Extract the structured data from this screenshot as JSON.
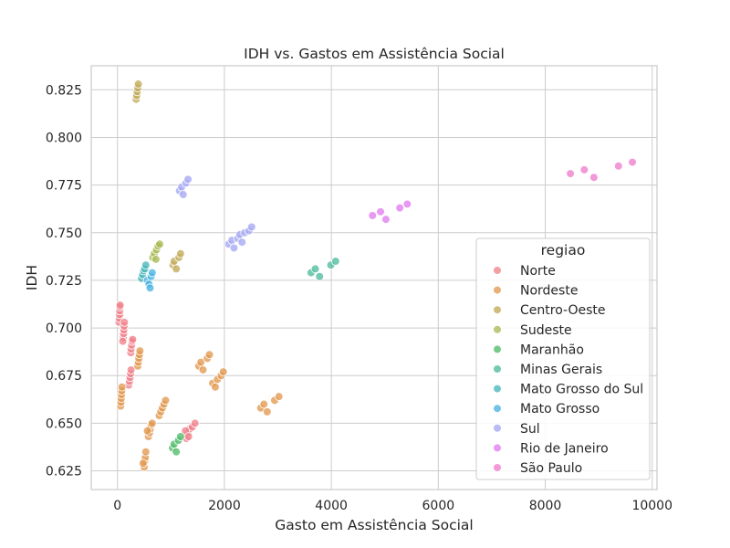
{
  "chart_data": {
    "type": "scatter",
    "title": "IDH vs. Gastos em Assistência Social",
    "xlabel": "Gasto em Assistência Social",
    "ylabel": "IDH",
    "xlim": [
      -490,
      10090
    ],
    "ylim": [
      0.6152,
      0.8376
    ],
    "xticks": [
      0,
      2000,
      4000,
      6000,
      8000,
      10000
    ],
    "yticks": [
      0.625,
      0.65,
      0.675,
      0.7,
      0.725,
      0.75,
      0.775,
      0.8,
      0.825
    ],
    "xtick_labels": [
      "0",
      "2000",
      "4000",
      "6000",
      "8000",
      "10000"
    ],
    "ytick_labels": [
      "0.625",
      "0.650",
      "0.675",
      "0.700",
      "0.725",
      "0.750",
      "0.775",
      "0.800",
      "0.825"
    ],
    "grid": true,
    "legend": {
      "title": "regiao",
      "position": "lower-right"
    },
    "series": [
      {
        "name": "Norte",
        "color": "#f0828a",
        "points": [
          [
            30,
            0.703
          ],
          [
            35,
            0.705
          ],
          [
            40,
            0.707
          ],
          [
            42,
            0.709
          ],
          [
            45,
            0.711
          ],
          [
            50,
            0.712
          ],
          [
            110,
            0.695
          ],
          [
            115,
            0.697
          ],
          [
            120,
            0.699
          ],
          [
            125,
            0.701
          ],
          [
            130,
            0.703
          ],
          [
            100,
            0.693
          ],
          [
            250,
            0.687
          ],
          [
            255,
            0.689
          ],
          [
            265,
            0.691
          ],
          [
            275,
            0.693
          ],
          [
            285,
            0.694
          ],
          [
            210,
            0.67
          ],
          [
            225,
            0.672
          ],
          [
            235,
            0.674
          ],
          [
            245,
            0.676
          ],
          [
            255,
            0.678
          ],
          [
            1290,
            0.642
          ],
          [
            1320,
            0.645
          ],
          [
            1350,
            0.647
          ],
          [
            1400,
            0.648
          ],
          [
            1450,
            0.65
          ],
          [
            1270,
            0.646
          ],
          [
            1330,
            0.643
          ]
        ]
      },
      {
        "name": "Nordeste",
        "color": "#e1994f",
        "points": [
          [
            60,
            0.659
          ],
          [
            65,
            0.661
          ],
          [
            70,
            0.663
          ],
          [
            75,
            0.665
          ],
          [
            80,
            0.667
          ],
          [
            85,
            0.669
          ],
          [
            380,
            0.68
          ],
          [
            390,
            0.682
          ],
          [
            400,
            0.684
          ],
          [
            410,
            0.686
          ],
          [
            420,
            0.688
          ],
          [
            500,
            0.627
          ],
          [
            510,
            0.63
          ],
          [
            520,
            0.632
          ],
          [
            530,
            0.635
          ],
          [
            480,
            0.629
          ],
          [
            580,
            0.643
          ],
          [
            600,
            0.645
          ],
          [
            615,
            0.647
          ],
          [
            630,
            0.649
          ],
          [
            650,
            0.65
          ],
          [
            560,
            0.646
          ],
          [
            780,
            0.654
          ],
          [
            810,
            0.656
          ],
          [
            840,
            0.658
          ],
          [
            870,
            0.66
          ],
          [
            900,
            0.662
          ],
          [
            1520,
            0.68
          ],
          [
            1560,
            0.682
          ],
          [
            1600,
            0.678
          ],
          [
            1680,
            0.684
          ],
          [
            1720,
            0.686
          ],
          [
            1780,
            0.671
          ],
          [
            1830,
            0.669
          ],
          [
            1870,
            0.673
          ],
          [
            1940,
            0.675
          ],
          [
            1980,
            0.677
          ],
          [
            2680,
            0.658
          ],
          [
            2740,
            0.66
          ],
          [
            2800,
            0.656
          ],
          [
            2940,
            0.662
          ],
          [
            3020,
            0.664
          ]
        ]
      },
      {
        "name": "Centro-Oeste",
        "color": "#c2aa5a",
        "points": [
          [
            350,
            0.82
          ],
          [
            360,
            0.822
          ],
          [
            370,
            0.824
          ],
          [
            380,
            0.826
          ],
          [
            390,
            0.828
          ],
          [
            1040,
            0.733
          ],
          [
            1060,
            0.735
          ],
          [
            1100,
            0.731
          ],
          [
            1150,
            0.737
          ],
          [
            1180,
            0.739
          ]
        ]
      },
      {
        "name": "Sudeste",
        "color": "#a9ba54",
        "points": [
          [
            660,
            0.737
          ],
          [
            690,
            0.739
          ],
          [
            730,
            0.741
          ],
          [
            760,
            0.743
          ],
          [
            790,
            0.744
          ],
          [
            720,
            0.736
          ]
        ]
      },
      {
        "name": "Maranhão",
        "color": "#4fbb69",
        "points": [
          [
            1030,
            0.637
          ],
          [
            1060,
            0.639
          ],
          [
            1100,
            0.635
          ],
          [
            1140,
            0.641
          ],
          [
            1180,
            0.643
          ]
        ]
      },
      {
        "name": "Minas Gerais",
        "color": "#4dbb9c",
        "points": [
          [
            3620,
            0.729
          ],
          [
            3700,
            0.731
          ],
          [
            3780,
            0.727
          ],
          [
            3990,
            0.733
          ],
          [
            4080,
            0.735
          ]
        ]
      },
      {
        "name": "Mato Grosso do Sul",
        "color": "#4ab7bb",
        "points": [
          [
            450,
            0.726
          ],
          [
            470,
            0.728
          ],
          [
            490,
            0.73
          ],
          [
            510,
            0.731
          ],
          [
            530,
            0.733
          ]
        ]
      },
      {
        "name": "Mato Grosso",
        "color": "#4ab4e0",
        "points": [
          [
            560,
            0.725
          ],
          [
            590,
            0.723
          ],
          [
            610,
            0.721
          ],
          [
            630,
            0.727
          ],
          [
            650,
            0.729
          ]
        ]
      },
      {
        "name": "Sul",
        "color": "#a4a8f2",
        "points": [
          [
            1160,
            0.772
          ],
          [
            1200,
            0.774
          ],
          [
            1230,
            0.77
          ],
          [
            1280,
            0.776
          ],
          [
            1320,
            0.778
          ],
          [
            2080,
            0.744
          ],
          [
            2140,
            0.746
          ],
          [
            2180,
            0.742
          ],
          [
            2250,
            0.747
          ],
          [
            2290,
            0.749
          ],
          [
            2330,
            0.745
          ],
          [
            2380,
            0.75
          ],
          [
            2460,
            0.751
          ],
          [
            2510,
            0.753
          ]
        ]
      },
      {
        "name": "Rio de Janeiro",
        "color": "#e17cf0",
        "points": [
          [
            4770,
            0.759
          ],
          [
            4920,
            0.761
          ],
          [
            5020,
            0.757
          ],
          [
            5280,
            0.763
          ],
          [
            5420,
            0.765
          ]
        ]
      },
      {
        "name": "São Paulo",
        "color": "#f07ccd",
        "points": [
          [
            8470,
            0.781
          ],
          [
            8730,
            0.783
          ],
          [
            8910,
            0.779
          ],
          [
            9370,
            0.785
          ],
          [
            9630,
            0.787
          ]
        ]
      }
    ]
  }
}
